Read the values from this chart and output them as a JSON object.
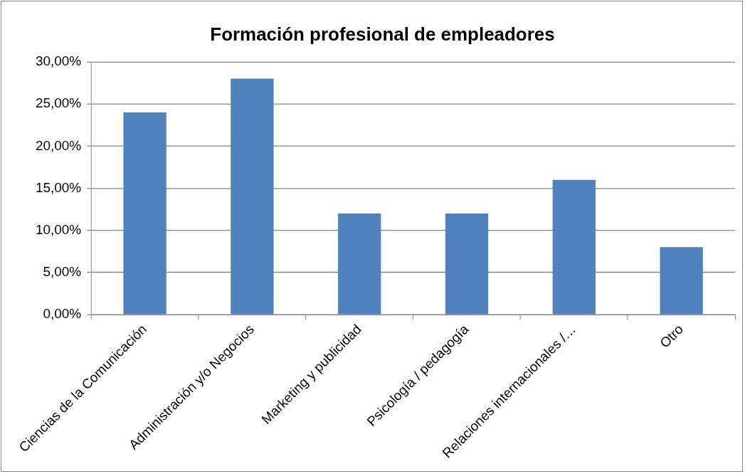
{
  "chart_data": {
    "type": "bar",
    "title": "Formación profesional de empleadores",
    "categories": [
      "Ciencias de la Comunicación",
      "Administración y/o Negocios",
      "Marketing y publicidad",
      "Psicología / pedagogía",
      "Relaciones internacionales /…",
      "Otro"
    ],
    "values": [
      24,
      28,
      12,
      12,
      16,
      8
    ],
    "color": "#4f81bd",
    "ylim": [
      0,
      30
    ],
    "yticks": [
      {
        "value": 0,
        "label": "0,00%"
      },
      {
        "value": 5,
        "label": "5,00%"
      },
      {
        "value": 10,
        "label": "10,00%"
      },
      {
        "value": 15,
        "label": "15,00%"
      },
      {
        "value": 20,
        "label": "20,00%"
      },
      {
        "value": 25,
        "label": "25,00%"
      },
      {
        "value": 30,
        "label": "30,00%"
      }
    ],
    "grid": "y",
    "legend": false
  }
}
